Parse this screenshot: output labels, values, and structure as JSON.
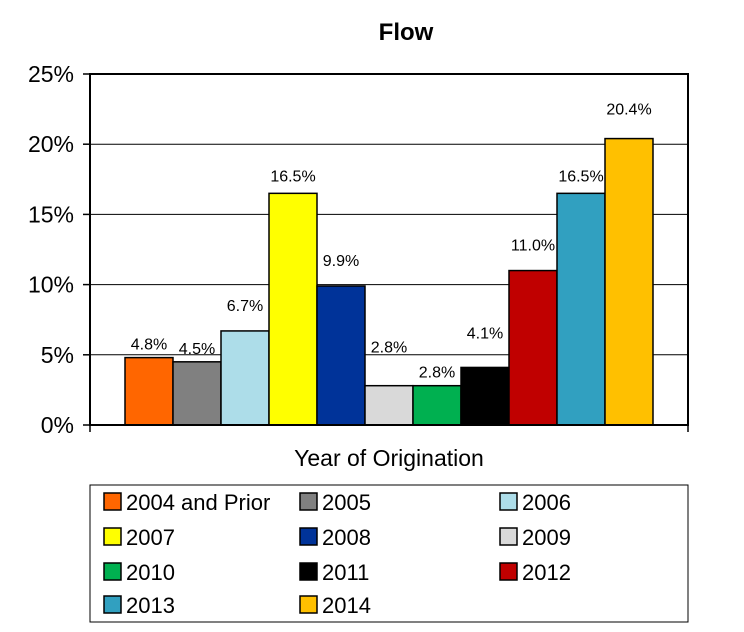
{
  "chart_data": {
    "type": "bar",
    "title": "Flow",
    "xlabel": "Year of Origination",
    "ylabel": "",
    "ylim": [
      0,
      25
    ],
    "yticks": [
      "0%",
      "5%",
      "10%",
      "15%",
      "20%",
      "25%"
    ],
    "grid": true,
    "legend_position": "bottom",
    "series": [
      {
        "name": "2004 and Prior",
        "value": 4.8,
        "label": "4.8%",
        "color": "#FF6600"
      },
      {
        "name": "2005",
        "value": 4.5,
        "label": "4.5%",
        "color": "#808080"
      },
      {
        "name": "2006",
        "value": 6.7,
        "label": "6.7%",
        "color": "#ADDDE9"
      },
      {
        "name": "2007",
        "value": 16.5,
        "label": "16.5%",
        "color": "#FFFF00"
      },
      {
        "name": "2008",
        "value": 9.9,
        "label": "9.9%",
        "color": "#003399"
      },
      {
        "name": "2009",
        "value": 2.8,
        "label": "2.8%",
        "color": "#D9D9D9"
      },
      {
        "name": "2010",
        "value": 2.8,
        "label": "2.8%",
        "color": "#00B050"
      },
      {
        "name": "2011",
        "value": 4.1,
        "label": "4.1%",
        "color": "#000000"
      },
      {
        "name": "2012",
        "value": 11.0,
        "label": "11.0%",
        "color": "#C00000"
      },
      {
        "name": "2013",
        "value": 16.5,
        "label": "16.5%",
        "color": "#31A0C0"
      },
      {
        "name": "2014",
        "value": 20.4,
        "label": "20.4%",
        "color": "#FFC000"
      }
    ]
  }
}
